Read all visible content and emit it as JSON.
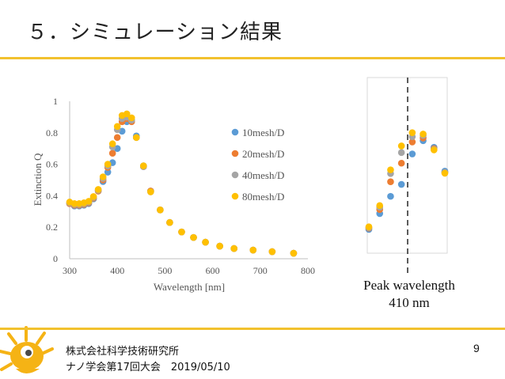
{
  "slide": {
    "title": "５．シミュレーション結果",
    "company": "株式会社科学技術研究所",
    "event": "ナノ学会第17回大会　2019/05/10",
    "page_number": "9",
    "peak_label_1": "Peak wavelength",
    "peak_label_2": "410 nm",
    "accent_color": "#f2c12e"
  },
  "chart_data": [
    {
      "type": "scatter",
      "xlabel": "Wavelength [nm]",
      "ylabel": "Extinction Q",
      "xlim": [
        300,
        800
      ],
      "ylim": [
        0,
        1
      ],
      "xticks": [
        "300",
        "400",
        "500",
        "600",
        "700",
        "800"
      ],
      "yticks": [
        "0",
        "0.2",
        "0.4",
        "0.6",
        "0.8",
        "1"
      ],
      "legend_position": "right",
      "series": [
        {
          "name": "10mesh/D",
          "color": "#5b9bd5",
          "x": [
            300,
            310,
            320,
            330,
            340,
            350,
            360,
            370,
            380,
            390,
            400,
            410,
            420,
            430,
            440,
            455,
            470,
            490,
            510,
            535,
            560,
            585,
            615,
            645,
            685,
            725,
            770
          ],
          "y": [
            0.35,
            0.335,
            0.335,
            0.34,
            0.35,
            0.38,
            0.43,
            0.49,
            0.55,
            0.61,
            0.7,
            0.81,
            0.87,
            0.88,
            0.78,
            0.59,
            0.43,
            0.31,
            0.23,
            0.17,
            0.135,
            0.105,
            0.08,
            0.065,
            0.055,
            0.045,
            0.035
          ]
        },
        {
          "name": "20mesh/D",
          "color": "#ed7d31",
          "x": [
            300,
            310,
            320,
            330,
            340,
            350,
            360,
            370,
            380,
            390,
            400,
            410,
            420,
            430,
            440,
            455,
            470,
            490,
            510,
            535,
            560,
            585,
            615,
            645,
            685,
            725,
            770
          ],
          "y": [
            0.35,
            0.34,
            0.34,
            0.345,
            0.355,
            0.385,
            0.43,
            0.5,
            0.58,
            0.67,
            0.77,
            0.87,
            0.89,
            0.87,
            0.77,
            0.585,
            0.43,
            0.31,
            0.23,
            0.17,
            0.135,
            0.105,
            0.08,
            0.065,
            0.055,
            0.045,
            0.035
          ]
        },
        {
          "name": "40mesh/D",
          "color": "#a5a5a5",
          "x": [
            300,
            310,
            320,
            330,
            340,
            350,
            360,
            370,
            380,
            390,
            400,
            410,
            420,
            430,
            440,
            455,
            470,
            490,
            510,
            535,
            560,
            585,
            615,
            645,
            685,
            725,
            770
          ],
          "y": [
            0.355,
            0.345,
            0.345,
            0.35,
            0.36,
            0.39,
            0.435,
            0.51,
            0.59,
            0.71,
            0.82,
            0.89,
            0.9,
            0.88,
            0.77,
            0.585,
            0.425,
            0.31,
            0.23,
            0.17,
            0.135,
            0.105,
            0.08,
            0.065,
            0.055,
            0.045,
            0.035
          ]
        },
        {
          "name": "80mesh/D",
          "color": "#ffc000",
          "x": [
            300,
            310,
            320,
            330,
            340,
            350,
            360,
            370,
            380,
            390,
            400,
            410,
            420,
            430,
            440,
            455,
            470,
            490,
            510,
            535,
            560,
            585,
            615,
            645,
            685,
            725,
            770
          ],
          "y": [
            0.36,
            0.35,
            0.35,
            0.355,
            0.365,
            0.395,
            0.44,
            0.52,
            0.6,
            0.73,
            0.84,
            0.91,
            0.92,
            0.895,
            0.77,
            0.59,
            0.425,
            0.31,
            0.23,
            0.17,
            0.135,
            0.105,
            0.08,
            0.065,
            0.055,
            0.045,
            0.035
          ]
        }
      ]
    },
    {
      "type": "scatter",
      "title": "",
      "xlim": [
        370,
        440
      ],
      "ylim": [
        0.55,
        0.95
      ],
      "peak_wavelength": 410,
      "series": [
        {
          "name": "10mesh/D",
          "color": "#5b9bd5",
          "x": [
            370,
            380,
            390,
            400,
            410,
            420,
            430,
            440
          ],
          "y": [
            0.55,
            0.61,
            0.675,
            0.72,
            0.835,
            0.885,
            0.86,
            0.77
          ]
        },
        {
          "name": "20mesh/D",
          "color": "#ed7d31",
          "x": [
            370,
            380,
            390,
            400,
            410,
            420,
            430,
            440
          ],
          "y": [
            0.555,
            0.625,
            0.73,
            0.8,
            0.88,
            0.895,
            0.855,
            0.765
          ]
        },
        {
          "name": "40mesh/D",
          "color": "#a5a5a5",
          "x": [
            370,
            380,
            390,
            400,
            410,
            420,
            430,
            440
          ],
          "y": [
            0.557,
            0.634,
            0.761,
            0.84,
            0.9,
            0.905,
            0.852,
            0.765
          ]
        },
        {
          "name": "80mesh/D",
          "color": "#ffc000",
          "x": [
            370,
            380,
            390,
            400,
            410,
            420,
            430,
            440
          ],
          "y": [
            0.56,
            0.64,
            0.775,
            0.865,
            0.915,
            0.91,
            0.85,
            0.762
          ]
        }
      ]
    }
  ]
}
